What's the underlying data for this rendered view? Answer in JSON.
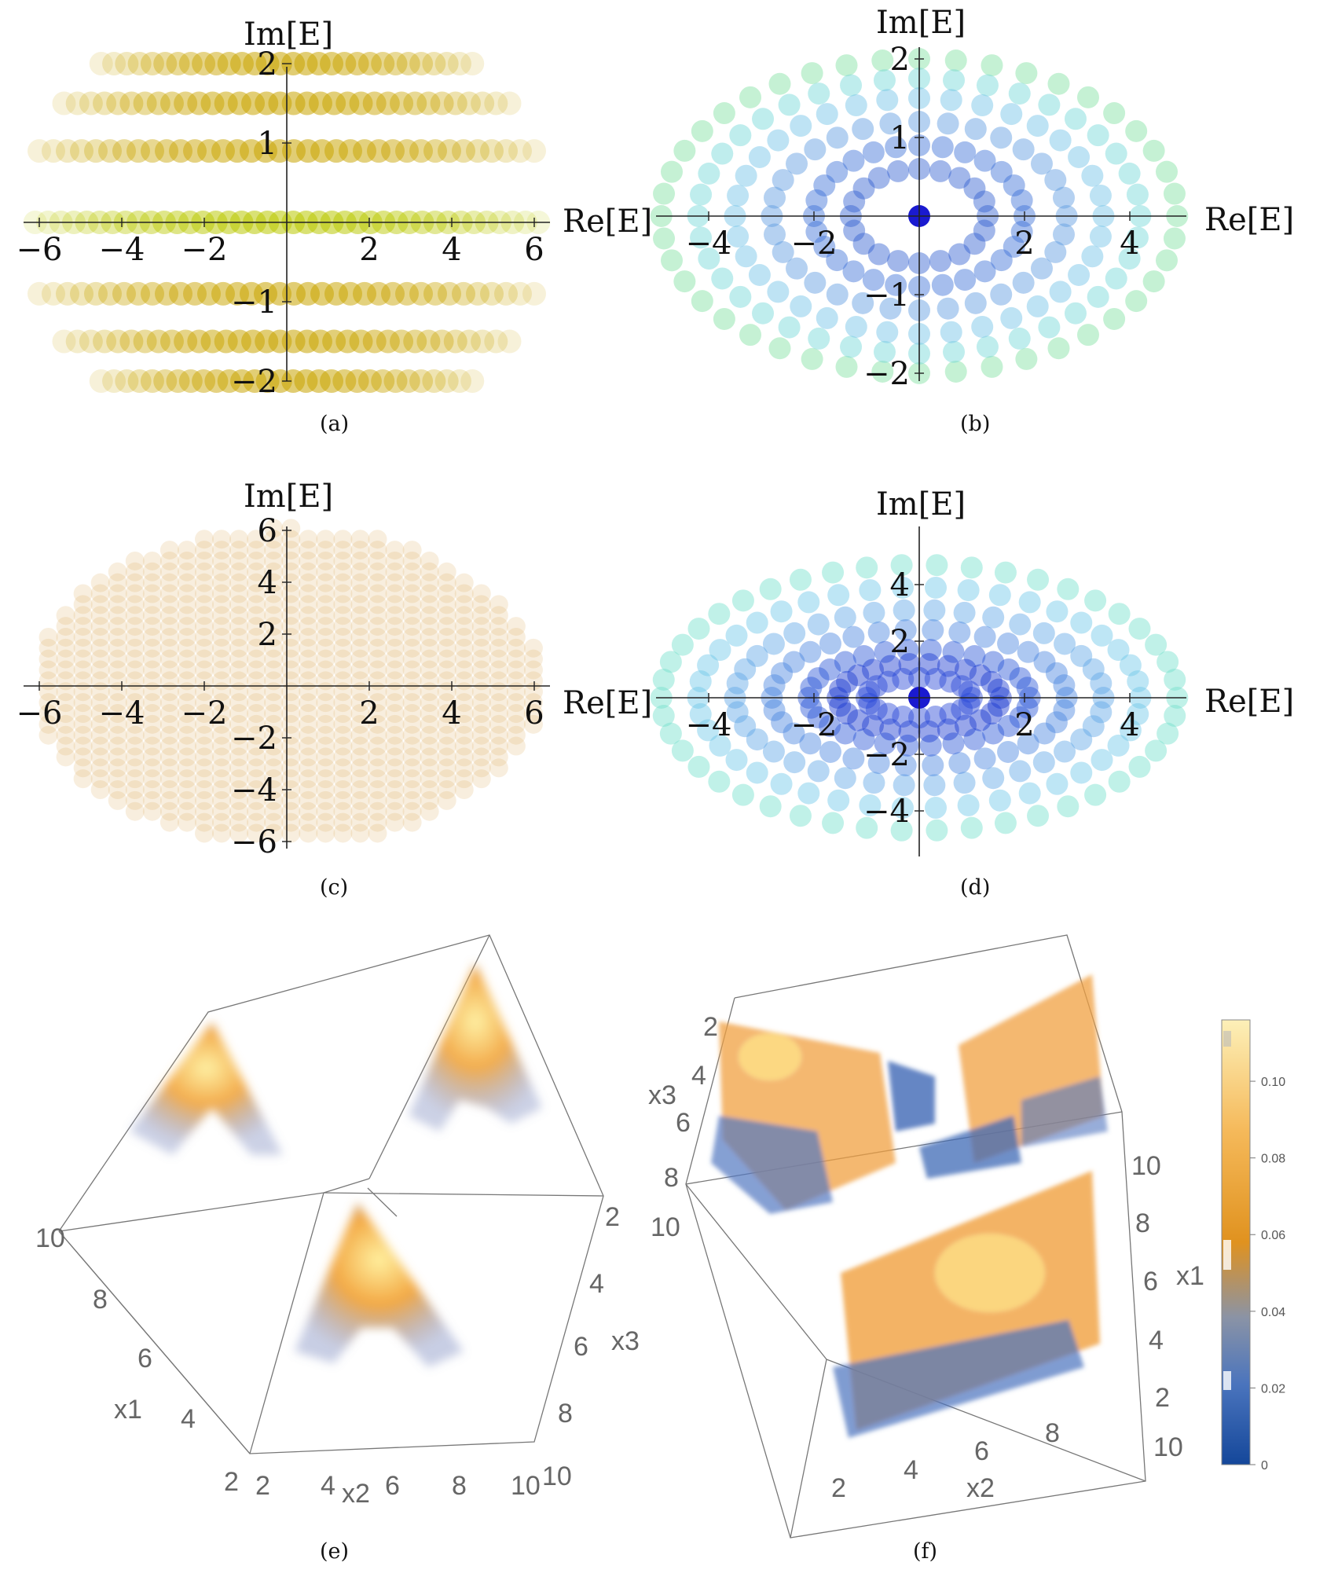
{
  "chart_data": [
    {
      "id": "a",
      "type": "scatter",
      "caption": "(a)",
      "xlabel": "",
      "ylabel": "Im[E]",
      "xlim": [
        -6.3,
        6.3
      ],
      "ylim": [
        -2.2,
        2.2
      ],
      "xticks": [
        "−6",
        "−4",
        "−2",
        "2",
        "4",
        "6"
      ],
      "xtickvals": [
        -6,
        -4,
        -2,
        2,
        4,
        6
      ],
      "yticks": [
        "2",
        "1",
        "−1",
        "−2"
      ],
      "ytickvals": [
        2,
        1,
        -1,
        -2
      ],
      "color": "#c9a400",
      "rows": [
        {
          "y": 2.0,
          "xmax": 4.5,
          "n": 30
        },
        {
          "y": 1.5,
          "xmax": 5.4,
          "n": 34
        },
        {
          "y": 0.9,
          "xmax": 6.0,
          "n": 36
        },
        {
          "y": 0.0,
          "xmax": 6.1,
          "n": 40
        },
        {
          "y": -0.9,
          "xmax": 6.0,
          "n": 36
        },
        {
          "y": -1.5,
          "xmax": 5.4,
          "n": 34
        },
        {
          "y": -2.0,
          "xmax": 4.5,
          "n": 30
        }
      ]
    },
    {
      "id": "b",
      "type": "scatter",
      "caption": "(b)",
      "xlabel": "Re[E]",
      "ylabel": "Im[E]",
      "xlim": [
        -5.0,
        5.0
      ],
      "ylim": [
        -2.1,
        2.1
      ],
      "xticks": [
        "−4",
        "−2",
        "2",
        "4"
      ],
      "xtickvals": [
        -4,
        -2,
        2,
        4
      ],
      "yticks": [
        "2",
        "1",
        "−1",
        "−2"
      ],
      "ytickvals": [
        2,
        1,
        -1,
        -2
      ],
      "rings": [
        {
          "rx": 4.9,
          "ry": 2.0,
          "n": 44,
          "color": "#7fe0a0"
        },
        {
          "rx": 4.2,
          "ry": 1.75,
          "n": 40,
          "color": "#70d6d8"
        },
        {
          "rx": 3.5,
          "ry": 1.5,
          "n": 36,
          "color": "#6fc0e6"
        },
        {
          "rx": 2.8,
          "ry": 1.2,
          "n": 32,
          "color": "#5b9ae0"
        },
        {
          "rx": 2.0,
          "ry": 0.9,
          "n": 28,
          "color": "#3a6fd6"
        },
        {
          "rx": 1.3,
          "ry": 0.6,
          "n": 20,
          "color": "#3060d0"
        }
      ],
      "center_point": {
        "x": 0,
        "y": 0,
        "color": "#1a1ad0"
      }
    },
    {
      "id": "c",
      "type": "scatter",
      "caption": "(c)",
      "xlabel": "Re[E]",
      "ylabel": "Im[E]",
      "xlim": [
        -6.3,
        6.3
      ],
      "ylim": [
        -6.3,
        6.3
      ],
      "xticks": [
        "−6",
        "−4",
        "−2",
        "2",
        "4",
        "6"
      ],
      "xtickvals": [
        -6,
        -4,
        -2,
        2,
        4,
        6
      ],
      "yticks": [
        "6",
        "4",
        "2",
        "−2",
        "−4",
        "−6"
      ],
      "ytickvals": [
        6,
        4,
        2,
        -2,
        -4,
        -6
      ],
      "color": "#d9a04a",
      "disk": {
        "rx": 6.2,
        "ry": 6.1
      }
    },
    {
      "id": "d",
      "type": "scatter",
      "caption": "(d)",
      "xlabel": "Re[E]",
      "ylabel": "Im[E]",
      "xlim": [
        -5.0,
        5.0
      ],
      "ylim": [
        -5.5,
        5.5
      ],
      "xticks": [
        "−4",
        "−2",
        "2",
        "4"
      ],
      "xtickvals": [
        -4,
        -2,
        2,
        4
      ],
      "yticks": [
        "4",
        "2",
        "−2",
        "−4"
      ],
      "ytickvals": [
        4,
        2,
        -2,
        -4
      ],
      "rings": [
        {
          "rx": 4.9,
          "ry": 4.7,
          "n": 46,
          "color": "#74e0cc"
        },
        {
          "rx": 4.2,
          "ry": 3.9,
          "n": 42,
          "color": "#6fc8e8"
        },
        {
          "rx": 3.5,
          "ry": 3.1,
          "n": 38,
          "color": "#5fa6e6"
        },
        {
          "rx": 2.8,
          "ry": 2.4,
          "n": 34,
          "color": "#4a86e0"
        },
        {
          "rx": 2.1,
          "ry": 1.7,
          "n": 30,
          "color": "#2a56d8"
        },
        {
          "rx": 1.55,
          "ry": 1.2,
          "n": 26,
          "color": "#1a3ad0"
        },
        {
          "rx": 1.0,
          "ry": 0.7,
          "n": 20,
          "color": "#2848d6"
        }
      ],
      "center_point": {
        "x": 0,
        "y": 0,
        "color": "#1a1ad0"
      }
    },
    {
      "id": "e",
      "type": "heatmap",
      "caption": "(e)",
      "axis_labels": [
        "x1",
        "x2",
        "x3"
      ],
      "x1_ticks": [
        "10",
        "8",
        "6",
        "4",
        "2"
      ],
      "x2_ticks": [
        "2",
        "4",
        "6",
        "8",
        "10"
      ],
      "x3_ticks": [
        "2",
        "4",
        "6",
        "8",
        "10"
      ]
    },
    {
      "id": "f",
      "type": "heatmap",
      "caption": "(f)",
      "axis_labels": [
        "x1",
        "x2",
        "x3"
      ],
      "x3_ticks": [
        "2",
        "4",
        "6",
        "8",
        "10"
      ],
      "x1_ticks": [
        "10",
        "8",
        "6",
        "4",
        "2"
      ],
      "x1_outer_ticks": [
        "10"
      ],
      "x2_ticks": [
        "2",
        "4",
        "6",
        "8"
      ],
      "colorbar": {
        "ticks": [
          "0.10",
          "0.08",
          "0.06",
          "0.04",
          "0.02",
          "0"
        ],
        "tickvals": [
          0.1,
          0.08,
          0.06,
          0.04,
          0.02,
          0
        ],
        "range": [
          0,
          0.116
        ],
        "colors": [
          "#1d4fa0",
          "#5a7fc0",
          "#8a8f9a",
          "#d9902a",
          "#f3b04a",
          "#fbe9a0"
        ]
      }
    }
  ]
}
